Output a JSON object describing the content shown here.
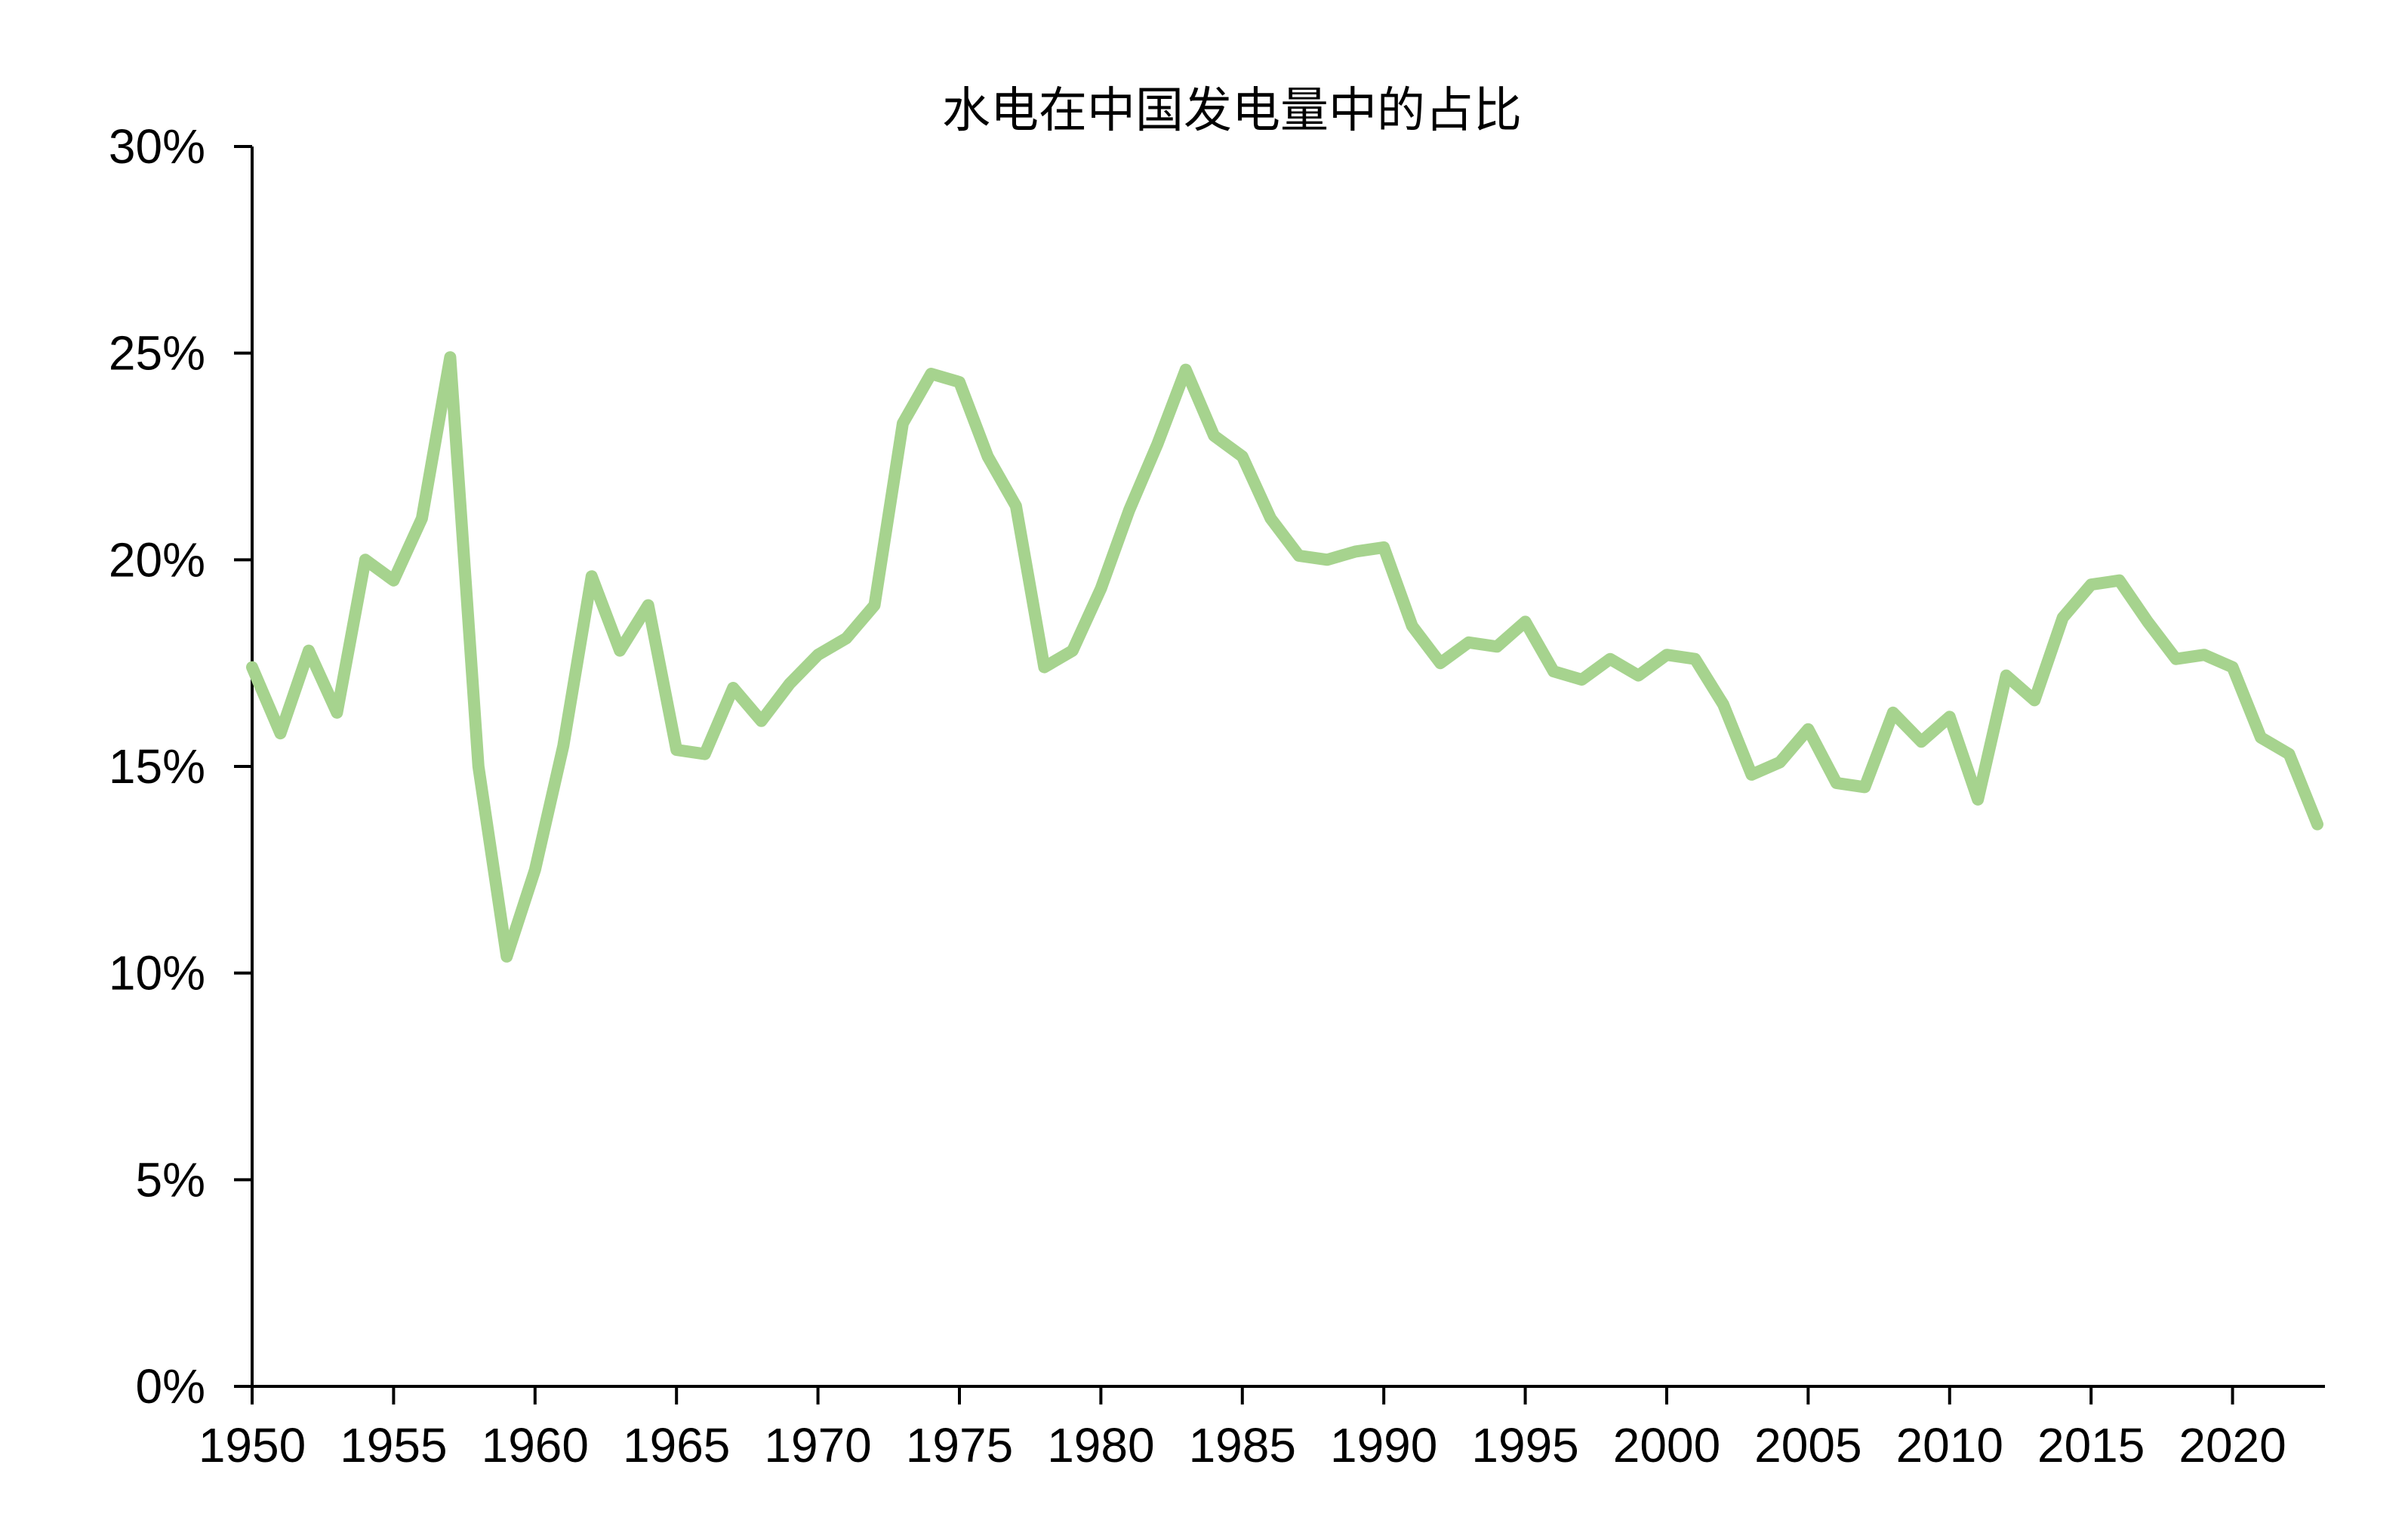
{
  "chart_data": {
    "type": "line",
    "title": "水电在中国发电量中的占比",
    "xlabel": "",
    "ylabel": "",
    "xlim": [
      1950,
      2023
    ],
    "ylim": [
      0,
      30
    ],
    "x_ticks": [
      1950,
      1955,
      1960,
      1965,
      1970,
      1975,
      1980,
      1985,
      1990,
      1995,
      2000,
      2005,
      2010,
      2015,
      2020
    ],
    "x_tick_labels": [
      "1950",
      "1955",
      "1960",
      "1965",
      "1970",
      "1975",
      "1980",
      "1985",
      "1990",
      "1995",
      "2000",
      "2005",
      "2010",
      "2015",
      "2020"
    ],
    "y_ticks": [
      0,
      5,
      10,
      15,
      20,
      25,
      30
    ],
    "y_tick_labels": [
      "0%",
      "5%",
      "10%",
      "15%",
      "20%",
      "25%",
      "30%"
    ],
    "grid": false,
    "legend": "none",
    "colors": {
      "series": "#a6d38e",
      "axis": "#000000"
    },
    "x": [
      1950,
      1951,
      1952,
      1953,
      1954,
      1955,
      1956,
      1957,
      1958,
      1959,
      1960,
      1961,
      1962,
      1963,
      1964,
      1965,
      1966,
      1967,
      1968,
      1969,
      1970,
      1971,
      1972,
      1973,
      1974,
      1975,
      1976,
      1977,
      1978,
      1979,
      1980,
      1981,
      1982,
      1983,
      1984,
      1985,
      1986,
      1987,
      1988,
      1989,
      1990,
      1991,
      1992,
      1993,
      1994,
      1995,
      1996,
      1997,
      1998,
      1999,
      2000,
      2001,
      2002,
      2003,
      2004,
      2005,
      2006,
      2007,
      2008,
      2009,
      2010,
      2011,
      2012,
      2013,
      2014,
      2015,
      2016,
      2017,
      2018,
      2019,
      2020,
      2021,
      2022,
      2023
    ],
    "series": [
      {
        "values": [
          17.4,
          15.8,
          17.8,
          16.3,
          20.0,
          19.5,
          21.0,
          24.9,
          15.0,
          10.4,
          12.5,
          15.5,
          19.6,
          17.8,
          18.9,
          15.4,
          15.3,
          16.9,
          16.1,
          17.0,
          17.7,
          18.1,
          18.9,
          23.3,
          24.5,
          24.3,
          22.5,
          21.3,
          17.4,
          17.8,
          19.3,
          21.2,
          22.8,
          24.6,
          23.0,
          22.5,
          21.0,
          20.1,
          20.0,
          20.2,
          20.3,
          18.4,
          17.5,
          18.0,
          17.9,
          18.5,
          17.3,
          17.1,
          17.6,
          17.2,
          17.7,
          17.6,
          16.5,
          14.8,
          15.1,
          15.9,
          14.6,
          14.5,
          16.3,
          15.6,
          16.2,
          14.2,
          17.2,
          16.6,
          18.6,
          19.4,
          19.5,
          18.5,
          17.6,
          17.7,
          17.4,
          15.7,
          15.3,
          13.6
        ]
      }
    ]
  }
}
